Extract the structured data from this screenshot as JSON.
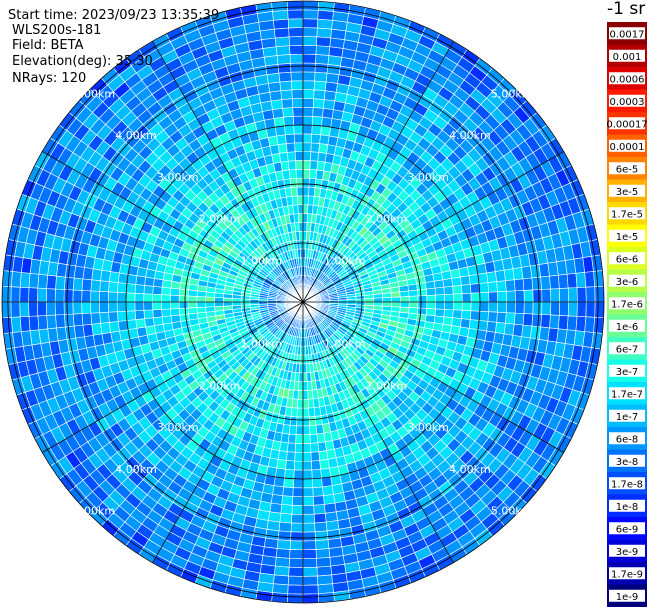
{
  "header": {
    "start_time": "Start time: 2023/09/23 13:35:39",
    "instrument": "WLS200s-181",
    "field": "Field: BETA",
    "elevation": "Elevation(deg): 35.30",
    "nrays": "NRays: 120"
  },
  "colorbar": {
    "unit_label": "-1 sr",
    "labels": [
      "0.0017",
      "0.001",
      "0.0006",
      "0.0003",
      "0.00017",
      "0.0001",
      "6e-5",
      "3e-5",
      "1.7e-5",
      "1e-5",
      "6e-6",
      "3e-6",
      "1.7e-6",
      "1e-6",
      "6e-7",
      "3e-7",
      "1.7e-7",
      "1e-7",
      "6e-8",
      "3e-8",
      "1.7e-8",
      "1e-8",
      "6e-9",
      "3e-9",
      "1.7e-9",
      "1e-9"
    ],
    "colors": [
      "#8b0000",
      "#b20000",
      "#dd0000",
      "#ff1a00",
      "#ff3300",
      "#ff6000",
      "#ff8400",
      "#ffb000",
      "#ffd800",
      "#ffff00",
      "#dcff20",
      "#b8ff48",
      "#90ff6e",
      "#68ff98",
      "#40ffc0",
      "#18ffe8",
      "#00e0ff",
      "#00bcff",
      "#0098ff",
      "#0074ff",
      "#0050ff",
      "#002cff",
      "#0008ff",
      "#0000d8",
      "#0000b0",
      "#00007c"
    ]
  },
  "chart_data": {
    "type": "heatmap",
    "projection": "polar (PPI scan)",
    "field": "BETA",
    "nrays": 120,
    "elevation_deg": 35.3,
    "range_ring_labels": [
      "1.00km",
      "2.00km",
      "3.00km",
      "4.00km",
      "5.00km"
    ],
    "range_rings_km": [
      1,
      2,
      3,
      4,
      5
    ],
    "max_range_km": 5.1,
    "radial_spokes": 12,
    "value_scale": "log",
    "value_min": 1e-09,
    "value_max": 0.0017,
    "radial_profile": [
      {
        "range_km": 0.0,
        "typical_value": 3e-08
      },
      {
        "range_km": 0.5,
        "typical_value": 5e-08
      },
      {
        "range_km": 1.0,
        "typical_value": 2e-07
      },
      {
        "range_km": 1.5,
        "typical_value": 3e-07
      },
      {
        "range_km": 2.0,
        "typical_value": 2.5e-07
      },
      {
        "range_km": 2.5,
        "typical_value": 1.5e-07
      },
      {
        "range_km": 3.0,
        "typical_value": 1e-07
      },
      {
        "range_km": 3.5,
        "typical_value": 7e-08
      },
      {
        "range_km": 4.0,
        "typical_value": 5e-08
      },
      {
        "range_km": 4.5,
        "typical_value": 4e-08
      },
      {
        "range_km": 5.0,
        "typical_value": 3e-08
      }
    ]
  }
}
